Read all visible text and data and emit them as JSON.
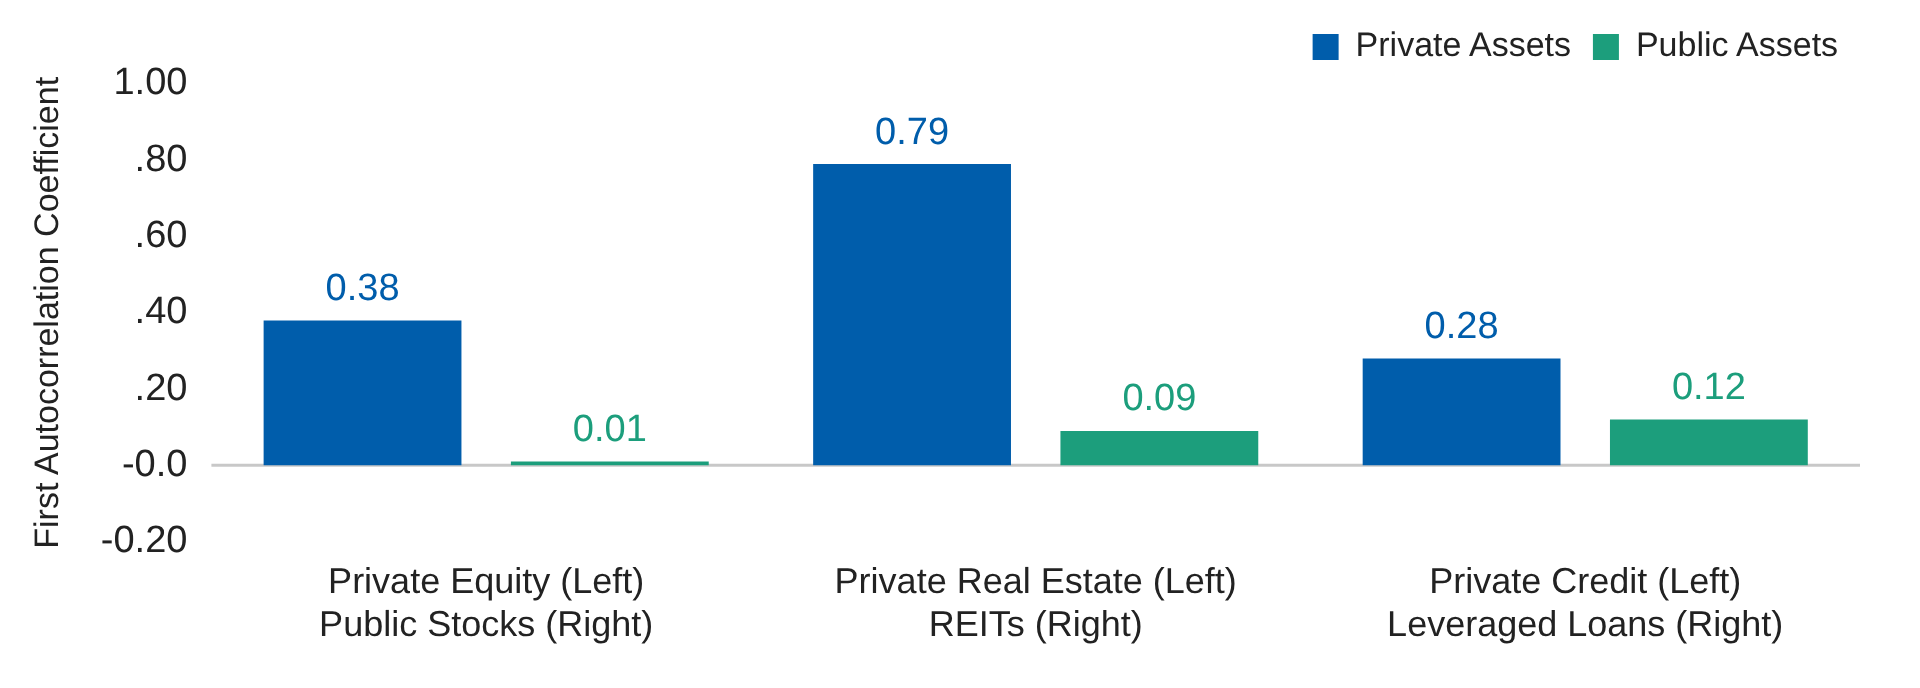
{
  "chart_data": {
    "type": "bar",
    "ylabel": "First Autocorrelation Coefficient",
    "categories": [
      "Private Equity (Left)\nPublic Stocks (Right)",
      "Private Real Estate (Left)\nREITs (Right)",
      "Private Credit (Left)\nLeveraged Loans (Right)"
    ],
    "series": [
      {
        "name": "Private Assets",
        "color": "#005dab",
        "values": [
          0.38,
          0.79,
          0.28
        ]
      },
      {
        "name": "Public Assets",
        "color": "#1c9e7c",
        "values": [
          0.01,
          0.09,
          0.12
        ]
      }
    ],
    "ylim": [
      -0.2,
      1.0
    ],
    "yticks": [
      {
        "value": -0.2,
        "label": "-0.20"
      },
      {
        "value": 0,
        "label": "-0.0"
      },
      {
        "value": 0.2,
        "label": ".20"
      },
      {
        "value": 0.4,
        "label": ".40"
      },
      {
        "value": 0.6,
        "label": ".60"
      },
      {
        "value": 0.8,
        "label": ".80"
      },
      {
        "value": 1.0,
        "label": "1.00"
      }
    ],
    "data_labels": true,
    "legend": "top right",
    "ref_lines": [
      {
        "axis": "y",
        "value": 0,
        "color": "#c8c8c8"
      }
    ]
  }
}
